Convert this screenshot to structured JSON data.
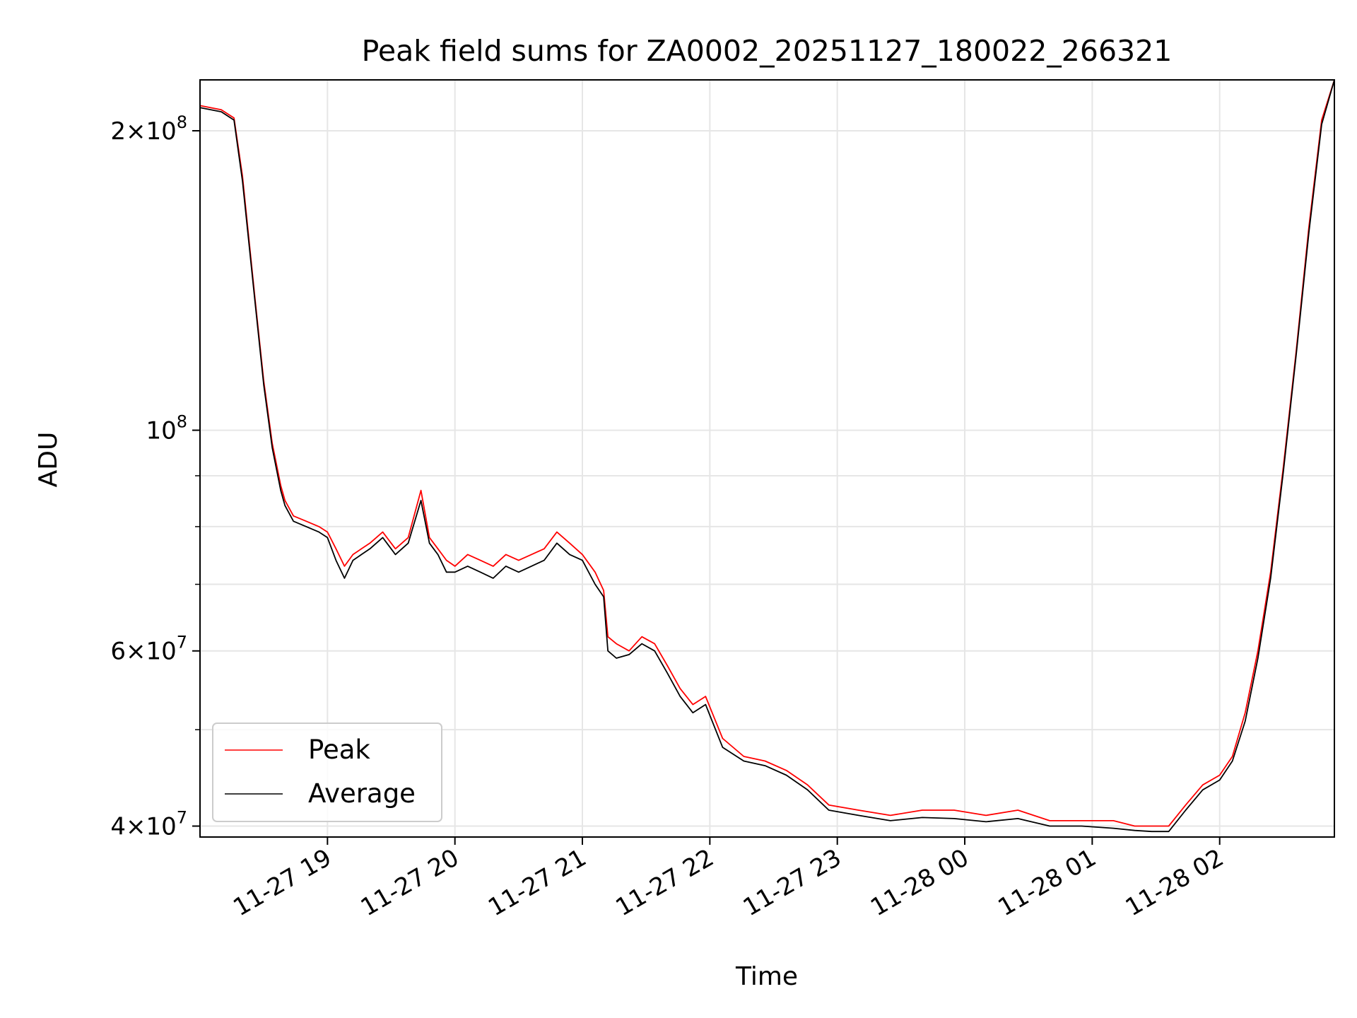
{
  "chart_data": {
    "type": "line",
    "title": "Peak field sums for ZA0002_20251127_180022_266321",
    "xlabel": "Time",
    "ylabel": "ADU",
    "y_scale": "log",
    "ylim": [
      39000000.0,
      225000000.0
    ],
    "xlim": [
      "2025-11-27 18:00",
      "2025-11-28 02:54"
    ],
    "grid": true,
    "legend_position": "lower-left",
    "colors": {
      "Peak": "#ff0000",
      "Average": "#000000"
    },
    "x_ticks": [
      {
        "t": "2025-11-27 19:00",
        "label": "11-27 19"
      },
      {
        "t": "2025-11-27 20:00",
        "label": "11-27 20"
      },
      {
        "t": "2025-11-27 21:00",
        "label": "11-27 21"
      },
      {
        "t": "2025-11-27 22:00",
        "label": "11-27 22"
      },
      {
        "t": "2025-11-27 23:00",
        "label": "11-27 23"
      },
      {
        "t": "2025-11-28 00:00",
        "label": "11-28 00"
      },
      {
        "t": "2025-11-28 01:00",
        "label": "11-28 01"
      },
      {
        "t": "2025-11-28 02:00",
        "label": "11-28 02"
      }
    ],
    "y_ticks": [
      {
        "v": 200000000,
        "mant": "2",
        "exp": "8"
      },
      {
        "v": 100000000,
        "mant": "",
        "exp": "8"
      },
      {
        "v": 60000000,
        "mant": "6",
        "exp": "7"
      },
      {
        "v": 40000000,
        "mant": "4",
        "exp": "7"
      }
    ],
    "y_minor_ticks": [
      50000000,
      70000000,
      80000000,
      90000000
    ],
    "series": [
      {
        "name": "Peak",
        "t": [
          "2025-11-27 18:00",
          "2025-11-27 18:10",
          "2025-11-27 18:16",
          "2025-11-27 18:20",
          "2025-11-27 18:26",
          "2025-11-27 18:30",
          "2025-11-27 18:34",
          "2025-11-27 18:38",
          "2025-11-27 18:40",
          "2025-11-27 18:44",
          "2025-11-27 18:50",
          "2025-11-27 18:56",
          "2025-11-27 19:00",
          "2025-11-27 19:04",
          "2025-11-27 19:08",
          "2025-11-27 19:12",
          "2025-11-27 19:16",
          "2025-11-27 19:20",
          "2025-11-27 19:26",
          "2025-11-27 19:32",
          "2025-11-27 19:38",
          "2025-11-27 19:44",
          "2025-11-27 19:48",
          "2025-11-27 19:52",
          "2025-11-27 19:56",
          "2025-11-27 20:00",
          "2025-11-27 20:06",
          "2025-11-27 20:12",
          "2025-11-27 20:18",
          "2025-11-27 20:24",
          "2025-11-27 20:30",
          "2025-11-27 20:36",
          "2025-11-27 20:42",
          "2025-11-27 20:48",
          "2025-11-27 20:54",
          "2025-11-27 21:00",
          "2025-11-27 21:06",
          "2025-11-27 21:10",
          "2025-11-27 21:12",
          "2025-11-27 21:16",
          "2025-11-27 21:22",
          "2025-11-27 21:28",
          "2025-11-27 21:34",
          "2025-11-27 21:40",
          "2025-11-27 21:46",
          "2025-11-27 21:52",
          "2025-11-27 21:58",
          "2025-11-27 22:06",
          "2025-11-27 22:16",
          "2025-11-27 22:26",
          "2025-11-27 22:36",
          "2025-11-27 22:46",
          "2025-11-27 22:56",
          "2025-11-27 23:10",
          "2025-11-27 23:25",
          "2025-11-27 23:40",
          "2025-11-27 23:55",
          "2025-11-28 00:10",
          "2025-11-28 00:25",
          "2025-11-28 00:40",
          "2025-11-28 00:55",
          "2025-11-28 01:10",
          "2025-11-28 01:20",
          "2025-11-28 01:28",
          "2025-11-28 01:36",
          "2025-11-28 01:44",
          "2025-11-28 01:52",
          "2025-11-28 02:00",
          "2025-11-28 02:06",
          "2025-11-28 02:12",
          "2025-11-28 02:18",
          "2025-11-28 02:24",
          "2025-11-28 02:30",
          "2025-11-28 02:36",
          "2025-11-28 02:42",
          "2025-11-28 02:48",
          "2025-11-28 02:54"
        ],
        "values": [
          212000000,
          210000000,
          206000000,
          180000000,
          135000000,
          112000000,
          97000000,
          88000000,
          85000000,
          82000000,
          81000000,
          80000000,
          79000000,
          76000000,
          73000000,
          75000000,
          76000000,
          77000000,
          79000000,
          76000000,
          78000000,
          87000000,
          78000000,
          76000000,
          74000000,
          73000000,
          75000000,
          74000000,
          73000000,
          75000000,
          74000000,
          75000000,
          76000000,
          79000000,
          77000000,
          75000000,
          72000000,
          69000000,
          62000000,
          61000000,
          60000000,
          62000000,
          61000000,
          58000000,
          55000000,
          53000000,
          54000000,
          49000000,
          47000000,
          46500000,
          45500000,
          44000000,
          42000000,
          41500000,
          41000000,
          41500000,
          41500000,
          41000000,
          41500000,
          40500000,
          40500000,
          40500000,
          40000000,
          40000000,
          40000000,
          42000000,
          44000000,
          45000000,
          47000000,
          52000000,
          60000000,
          72000000,
          92000000,
          120000000,
          160000000,
          205000000,
          225000000
        ]
      },
      {
        "name": "Average",
        "t": [
          "2025-11-27 18:00",
          "2025-11-27 18:10",
          "2025-11-27 18:16",
          "2025-11-27 18:20",
          "2025-11-27 18:26",
          "2025-11-27 18:30",
          "2025-11-27 18:34",
          "2025-11-27 18:38",
          "2025-11-27 18:40",
          "2025-11-27 18:44",
          "2025-11-27 18:50",
          "2025-11-27 18:56",
          "2025-11-27 19:00",
          "2025-11-27 19:04",
          "2025-11-27 19:08",
          "2025-11-27 19:12",
          "2025-11-27 19:16",
          "2025-11-27 19:20",
          "2025-11-27 19:26",
          "2025-11-27 19:32",
          "2025-11-27 19:38",
          "2025-11-27 19:44",
          "2025-11-27 19:48",
          "2025-11-27 19:52",
          "2025-11-27 19:56",
          "2025-11-27 20:00",
          "2025-11-27 20:06",
          "2025-11-27 20:12",
          "2025-11-27 20:18",
          "2025-11-27 20:24",
          "2025-11-27 20:30",
          "2025-11-27 20:36",
          "2025-11-27 20:42",
          "2025-11-27 20:48",
          "2025-11-27 20:54",
          "2025-11-27 21:00",
          "2025-11-27 21:06",
          "2025-11-27 21:10",
          "2025-11-27 21:12",
          "2025-11-27 21:16",
          "2025-11-27 21:22",
          "2025-11-27 21:28",
          "2025-11-27 21:34",
          "2025-11-27 21:40",
          "2025-11-27 21:46",
          "2025-11-27 21:52",
          "2025-11-27 21:58",
          "2025-11-27 22:06",
          "2025-11-27 22:16",
          "2025-11-27 22:26",
          "2025-11-27 22:36",
          "2025-11-27 22:46",
          "2025-11-27 22:56",
          "2025-11-27 23:10",
          "2025-11-27 23:25",
          "2025-11-27 23:40",
          "2025-11-27 23:55",
          "2025-11-28 00:10",
          "2025-11-28 00:25",
          "2025-11-28 00:40",
          "2025-11-28 00:55",
          "2025-11-28 01:10",
          "2025-11-28 01:20",
          "2025-11-28 01:28",
          "2025-11-28 01:36",
          "2025-11-28 01:44",
          "2025-11-28 01:52",
          "2025-11-28 02:00",
          "2025-11-28 02:06",
          "2025-11-28 02:12",
          "2025-11-28 02:18",
          "2025-11-28 02:24",
          "2025-11-28 02:30",
          "2025-11-28 02:36",
          "2025-11-28 02:42",
          "2025-11-28 02:48",
          "2025-11-28 02:54"
        ],
        "values": [
          211000000,
          209000000,
          205000000,
          178000000,
          134000000,
          111000000,
          96000000,
          87000000,
          84000000,
          81000000,
          80000000,
          79000000,
          78000000,
          74000000,
          71000000,
          74000000,
          75000000,
          76000000,
          78000000,
          75000000,
          77000000,
          85000000,
          77000000,
          75000000,
          72000000,
          72000000,
          73000000,
          72000000,
          71000000,
          73000000,
          72000000,
          73000000,
          74000000,
          77000000,
          75000000,
          74000000,
          70000000,
          68000000,
          60000000,
          59000000,
          59500000,
          61000000,
          60000000,
          57000000,
          54000000,
          52000000,
          53000000,
          48000000,
          46500000,
          46000000,
          45000000,
          43500000,
          41500000,
          41000000,
          40500000,
          40800000,
          40700000,
          40400000,
          40700000,
          40000000,
          40000000,
          39800000,
          39600000,
          39500000,
          39500000,
          41500000,
          43500000,
          44500000,
          46500000,
          51000000,
          59000000,
          71000000,
          91000000,
          119000000,
          158000000,
          203000000,
          225000000
        ]
      }
    ]
  }
}
